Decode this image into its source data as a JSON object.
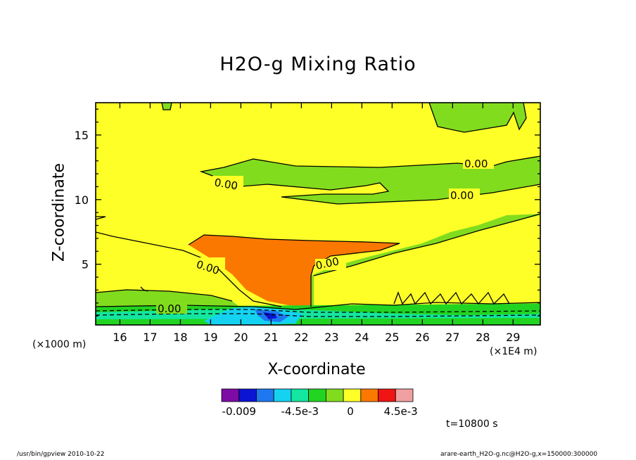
{
  "chart_data": {
    "type": "contour",
    "title": "H2O-g Mixing Ratio",
    "xlabel": "X-coordinate",
    "ylabel": "Z-coordinate",
    "x_unit_left": "(×1000 m)",
    "x_unit_right": "(×1E4 m)",
    "xlim": [
      15.2,
      29.9
    ],
    "ylim": [
      0.3,
      17.5
    ],
    "x_ticks": [
      "16",
      "17",
      "18",
      "19",
      "20",
      "21",
      "22",
      "23",
      "24",
      "25",
      "26",
      "27",
      "28",
      "29"
    ],
    "y_ticks": [
      "5",
      "10",
      "15"
    ],
    "contour_labels": [
      "0.00",
      "0.00",
      "0.00",
      "0.00",
      "0.00",
      "0.00"
    ],
    "colorbar": {
      "colors": [
        "#7e0ba6",
        "#0a14d2",
        "#1e78f0",
        "#14d2f0",
        "#14e6a0",
        "#22d422",
        "#82dc1e",
        "#ffff28",
        "#fa7800",
        "#f01414",
        "#f0a0a0"
      ],
      "tick_labels": [
        "-0.009",
        "-4.5e-3",
        "0",
        "4.5e-3"
      ]
    },
    "time_label": "t=10800 s"
  },
  "footer": {
    "left": "/usr/bin/gpview   2010-10-22",
    "right": "arare-earth_H2O-g.nc@H2O-g,x=150000:300000"
  }
}
